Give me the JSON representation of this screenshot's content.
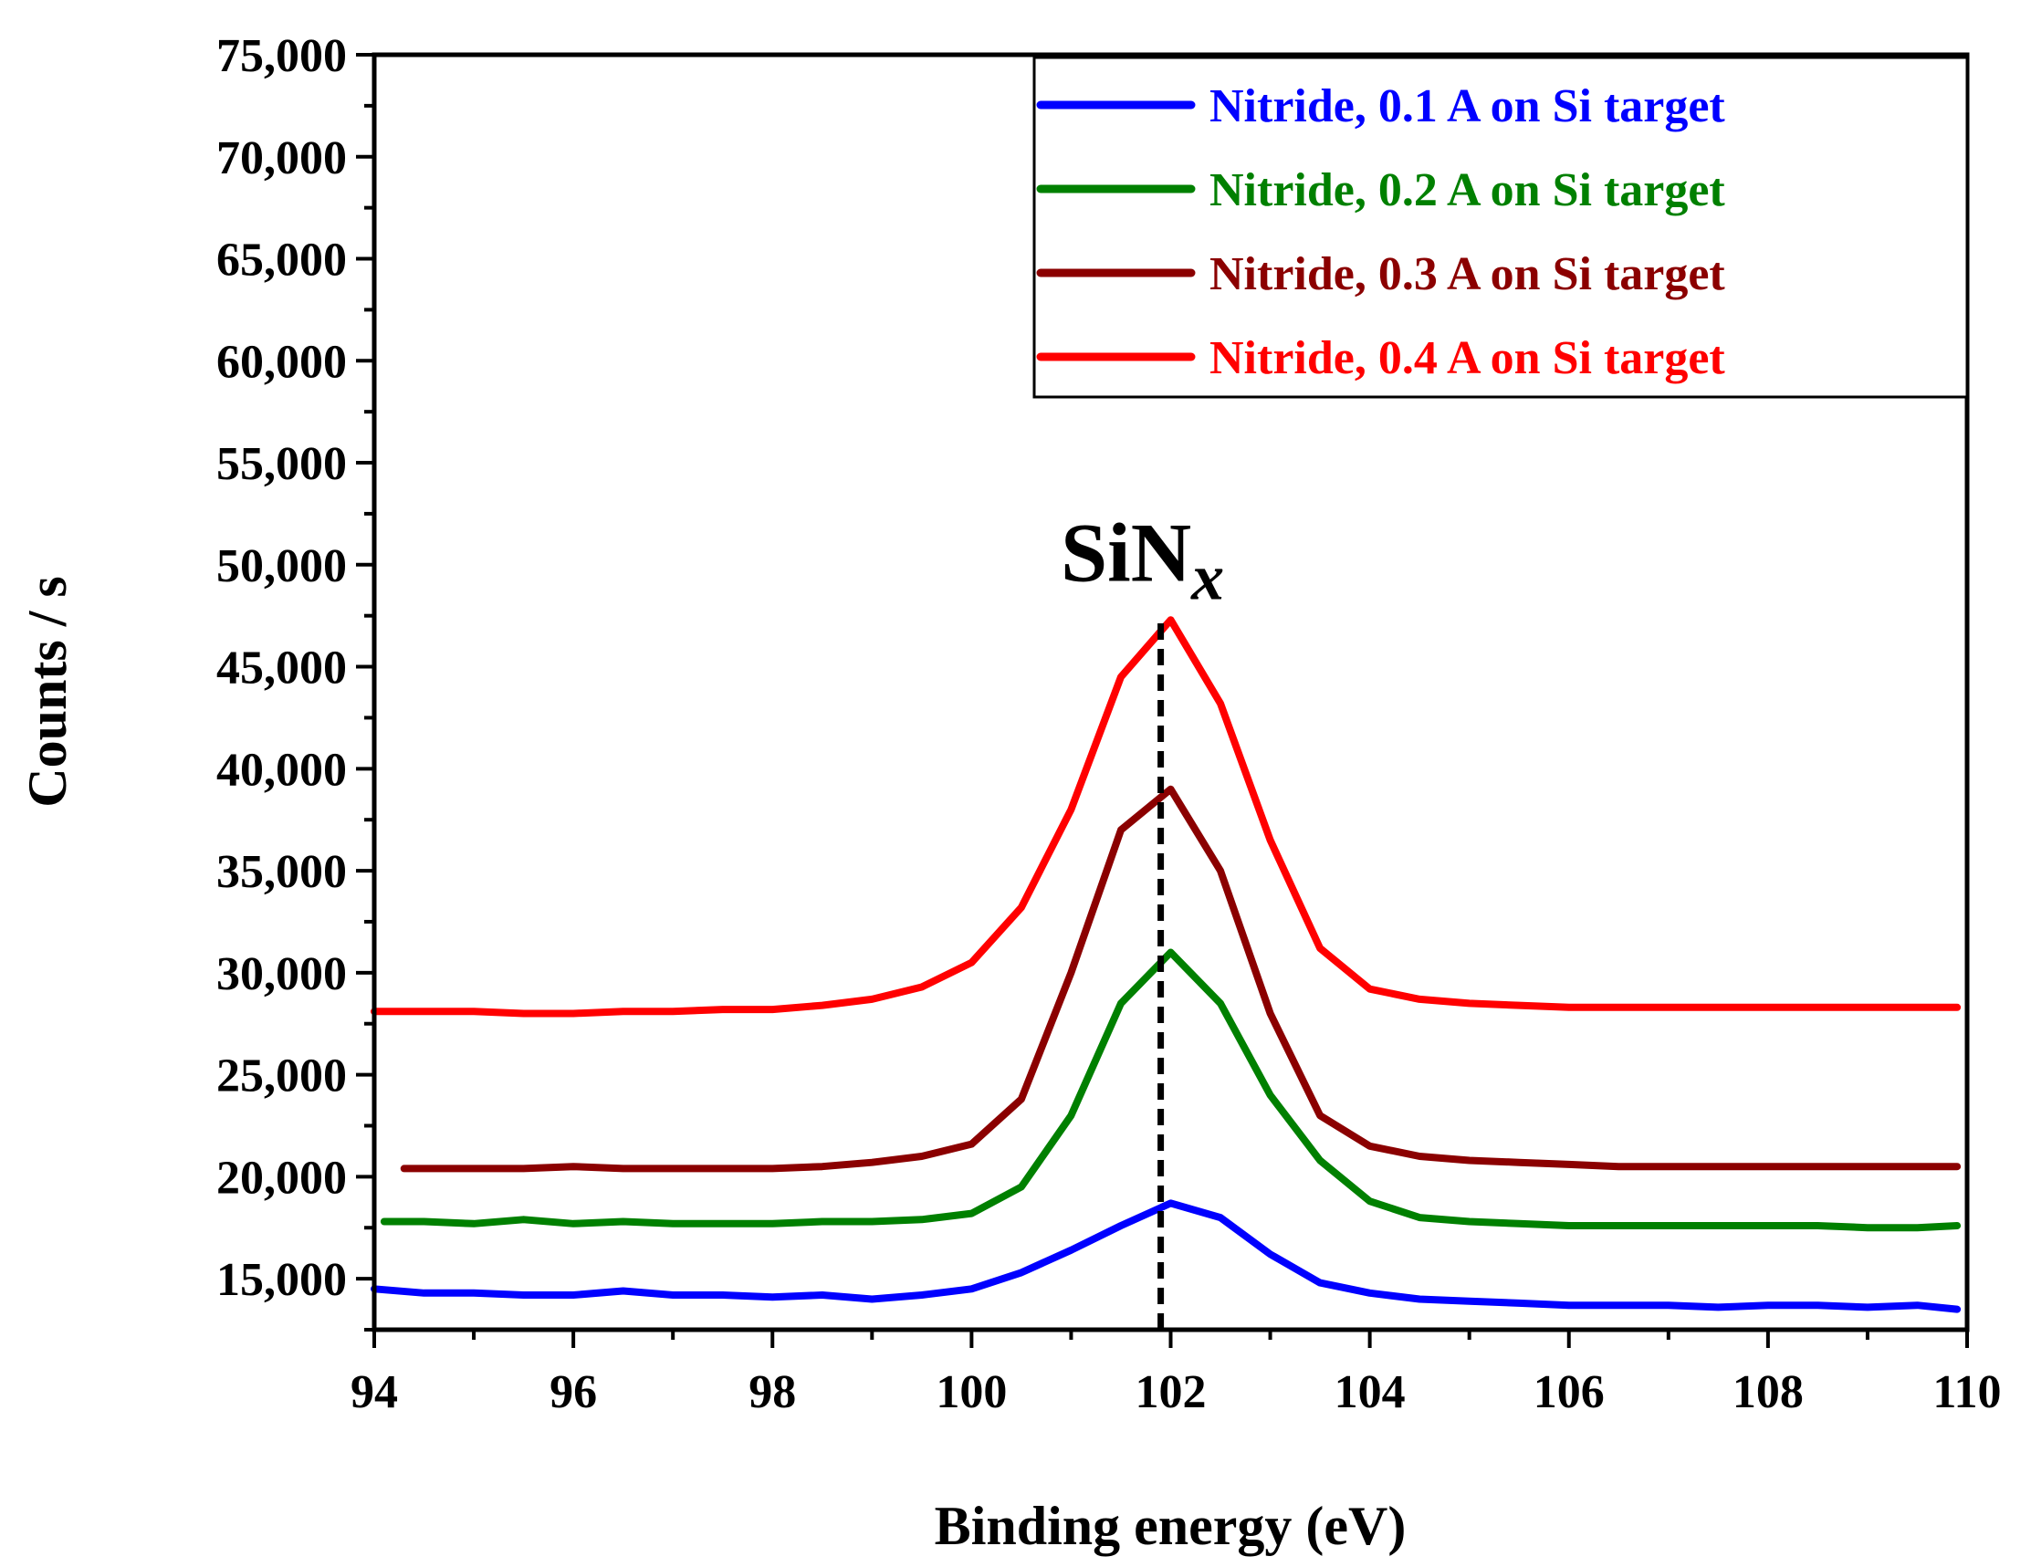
{
  "chart_data": {
    "type": "line",
    "title": "",
    "xlabel": "Binding energy (eV)",
    "ylabel": "Counts / s",
    "xlim": [
      94,
      110
    ],
    "ylim": [
      12500,
      75000
    ],
    "xticks": [
      94,
      96,
      98,
      100,
      102,
      104,
      106,
      108,
      110
    ],
    "xtick_labels": [
      "94",
      "96",
      "98",
      "100",
      "102",
      "104",
      "106",
      "108",
      "110"
    ],
    "yticks": [
      15000,
      20000,
      25000,
      30000,
      35000,
      40000,
      45000,
      50000,
      55000,
      60000,
      65000,
      70000,
      75000
    ],
    "ytick_labels": [
      "15,000",
      "20,000",
      "25,000",
      "30,000",
      "35,000",
      "40,000",
      "45,000",
      "50,000",
      "55,000",
      "60,000",
      "65,000",
      "70,000",
      "75,000"
    ],
    "legend_position": "top-right",
    "annotation": {
      "text": "SiN",
      "subscript": "x",
      "x": 101.9,
      "y": 51000
    },
    "reference_line": {
      "x": 101.9,
      "y_from": 12500,
      "y_to": 47300,
      "style": "dashed"
    },
    "series": [
      {
        "name": "Nitride, 0.1 A on Si target",
        "color": "#0000ff",
        "x": [
          94.0,
          94.5,
          95.0,
          95.5,
          96.0,
          96.5,
          97.0,
          97.5,
          98.0,
          98.5,
          99.0,
          99.5,
          100.0,
          100.5,
          101.0,
          101.5,
          102.0,
          102.5,
          103.0,
          103.5,
          104.0,
          104.5,
          105.0,
          105.5,
          106.0,
          106.5,
          107.0,
          107.5,
          108.0,
          108.5,
          109.0,
          109.5,
          109.9
        ],
        "values": [
          14500,
          14300,
          14300,
          14200,
          14200,
          14400,
          14200,
          14200,
          14100,
          14200,
          14000,
          14200,
          14500,
          15300,
          16400,
          17600,
          18700,
          18000,
          16200,
          14800,
          14300,
          14000,
          13900,
          13800,
          13700,
          13700,
          13700,
          13600,
          13700,
          13700,
          13600,
          13700,
          13500
        ]
      },
      {
        "name": "Nitride, 0.2 A on Si target",
        "color": "#008000",
        "x": [
          94.1,
          94.5,
          95.0,
          95.5,
          96.0,
          96.5,
          97.0,
          97.5,
          98.0,
          98.5,
          99.0,
          99.5,
          100.0,
          100.5,
          101.0,
          101.5,
          102.0,
          102.5,
          103.0,
          103.5,
          104.0,
          104.5,
          105.0,
          105.5,
          106.0,
          106.5,
          107.0,
          107.5,
          108.0,
          108.5,
          109.0,
          109.5,
          109.9
        ],
        "values": [
          17800,
          17800,
          17700,
          17900,
          17700,
          17800,
          17700,
          17700,
          17700,
          17800,
          17800,
          17900,
          18200,
          19500,
          23000,
          28500,
          31000,
          28500,
          24000,
          20800,
          18800,
          18000,
          17800,
          17700,
          17600,
          17600,
          17600,
          17600,
          17600,
          17600,
          17500,
          17500,
          17600
        ]
      },
      {
        "name": "Nitride, 0.3 A on Si target",
        "color": "#8b0000",
        "x": [
          94.3,
          94.5,
          95.0,
          95.5,
          96.0,
          96.5,
          97.0,
          97.5,
          98.0,
          98.5,
          99.0,
          99.5,
          100.0,
          100.5,
          101.0,
          101.5,
          102.0,
          102.5,
          103.0,
          103.5,
          104.0,
          104.5,
          105.0,
          105.5,
          106.0,
          106.5,
          107.0,
          107.5,
          108.0,
          108.5,
          109.0,
          109.5,
          109.9
        ],
        "values": [
          20400,
          20400,
          20400,
          20400,
          20500,
          20400,
          20400,
          20400,
          20400,
          20500,
          20700,
          21000,
          21600,
          23800,
          30000,
          37000,
          39000,
          35000,
          28000,
          23000,
          21500,
          21000,
          20800,
          20700,
          20600,
          20500,
          20500,
          20500,
          20500,
          20500,
          20500,
          20500,
          20500
        ]
      },
      {
        "name": "Nitride, 0.4 A on Si target",
        "color": "#ff0000",
        "x": [
          94.0,
          94.5,
          95.0,
          95.5,
          96.0,
          96.5,
          97.0,
          97.5,
          98.0,
          98.5,
          99.0,
          99.5,
          100.0,
          100.5,
          101.0,
          101.5,
          102.0,
          102.5,
          103.0,
          103.5,
          104.0,
          104.5,
          105.0,
          105.5,
          106.0,
          106.5,
          107.0,
          107.5,
          108.0,
          108.5,
          109.0,
          109.5,
          109.9
        ],
        "values": [
          28100,
          28100,
          28100,
          28000,
          28000,
          28100,
          28100,
          28200,
          28200,
          28400,
          28700,
          29300,
          30500,
          33200,
          38000,
          44500,
          47300,
          43200,
          36500,
          31200,
          29200,
          28700,
          28500,
          28400,
          28300,
          28300,
          28300,
          28300,
          28300,
          28300,
          28300,
          28300,
          28300
        ]
      }
    ]
  }
}
